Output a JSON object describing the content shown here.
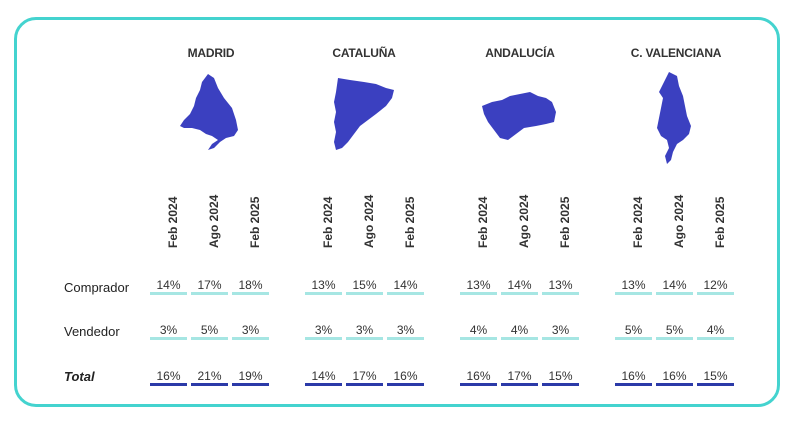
{
  "colors": {
    "border": "#44d3cf",
    "map_fill": "#3b40c0",
    "line_light": "#a6e6e3",
    "line_dark": "#2b3aa8"
  },
  "regions": [
    {
      "name": "MADRID",
      "icon": "madrid-map-icon"
    },
    {
      "name": "CATALUÑA",
      "icon": "cataluna-map-icon"
    },
    {
      "name": "ANDALUCÍA",
      "icon": "andalucia-map-icon"
    },
    {
      "name": "C. VALENCIANA",
      "icon": "valencia-map-icon"
    }
  ],
  "periods": [
    "Feb 2024",
    "Ago 2024",
    "Feb 2025"
  ],
  "rows": [
    {
      "label": "Comprador",
      "values": [
        [
          "14%",
          "17%",
          "18%"
        ],
        [
          "13%",
          "15%",
          "14%"
        ],
        [
          "13%",
          "14%",
          "13%"
        ],
        [
          "13%",
          "14%",
          "12%"
        ]
      ]
    },
    {
      "label": "Vendedor",
      "values": [
        [
          "3%",
          "5%",
          "3%"
        ],
        [
          "3%",
          "3%",
          "3%"
        ],
        [
          "4%",
          "4%",
          "3%"
        ],
        [
          "5%",
          "5%",
          "4%"
        ]
      ]
    },
    {
      "label": "Total",
      "values": [
        [
          "16%",
          "21%",
          "19%"
        ],
        [
          "14%",
          "17%",
          "16%"
        ],
        [
          "16%",
          "17%",
          "15%"
        ],
        [
          "16%",
          "16%",
          "15%"
        ]
      ]
    }
  ]
}
